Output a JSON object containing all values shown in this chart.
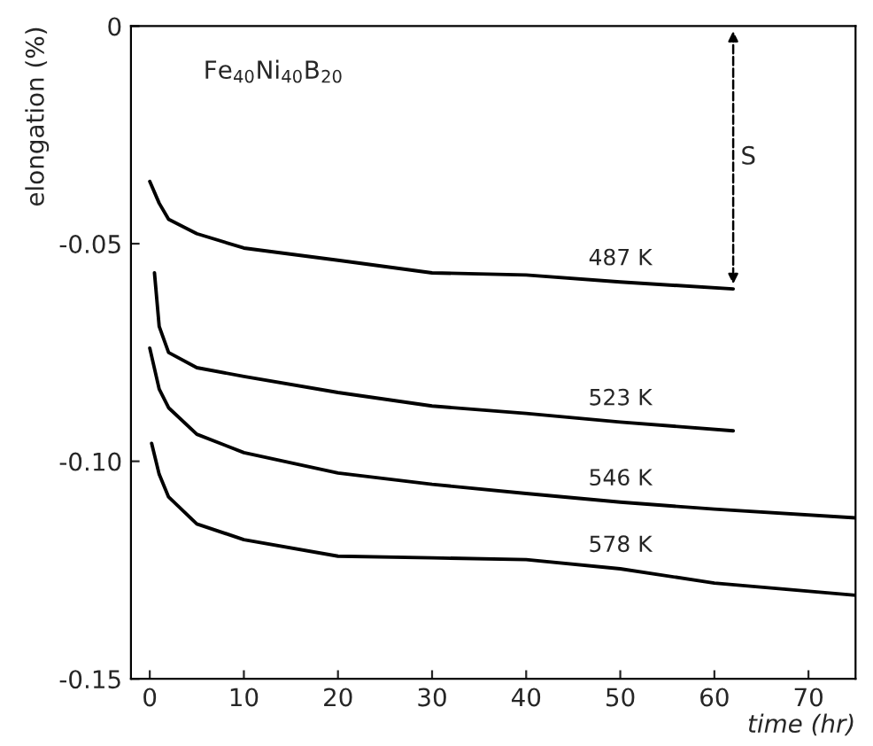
{
  "chart_data": {
    "type": "line",
    "xlabel": "time (hr)",
    "ylabel": "elongation (%)",
    "xlim": [
      -2,
      75
    ],
    "ylim": [
      -0.15,
      0
    ],
    "xticks": [
      0,
      10,
      20,
      30,
      40,
      50,
      60,
      70
    ],
    "yticks": [
      {
        "value": -0.15,
        "label": "-0.15"
      },
      {
        "value": -0.1,
        "label": "-0.10"
      },
      {
        "value": -0.05,
        "label": "-0.05"
      },
      {
        "value": 0,
        "label": "0"
      }
    ],
    "grid": false,
    "legend": false,
    "marker": "none",
    "line_style": "solid",
    "annotations": [
      "Fe$_{40}$Ni$_{40}$B$_{20}$",
      "S"
    ],
    "series": [
      {
        "name": "487 K",
        "color": "#000000",
        "x": [
          0,
          1,
          2,
          5,
          10,
          20,
          30,
          40,
          50,
          62
        ],
        "values": [
          -0.0357,
          -0.0407,
          -0.0444,
          -0.0477,
          -0.051,
          -0.0538,
          -0.0567,
          -0.0572,
          -0.0588,
          -0.0604
        ]
      },
      {
        "name": "523 K",
        "color": "#000000",
        "x": [
          0.5,
          1,
          2,
          5,
          10,
          20,
          30,
          40,
          50,
          62
        ],
        "values": [
          -0.0567,
          -0.069,
          -0.075,
          -0.0785,
          -0.0805,
          -0.0842,
          -0.0873,
          -0.089,
          -0.091,
          -0.093
        ]
      },
      {
        "name": "546 K",
        "color": "#000000",
        "x": [
          0,
          1,
          2,
          5,
          10,
          20,
          30,
          40,
          50,
          60,
          75
        ],
        "values": [
          -0.074,
          -0.0834,
          -0.0877,
          -0.0938,
          -0.098,
          -0.1027,
          -0.1053,
          -0.1074,
          -0.1094,
          -0.111,
          -0.113
        ]
      },
      {
        "name": "578 K",
        "color": "#000000",
        "x": [
          0.2,
          1,
          2,
          5,
          10,
          20,
          30,
          40,
          50,
          60,
          75
        ],
        "values": [
          -0.0959,
          -0.103,
          -0.1082,
          -0.1144,
          -0.118,
          -0.1218,
          -0.1222,
          -0.1226,
          -0.1247,
          -0.128,
          -0.1308
        ]
      }
    ]
  }
}
